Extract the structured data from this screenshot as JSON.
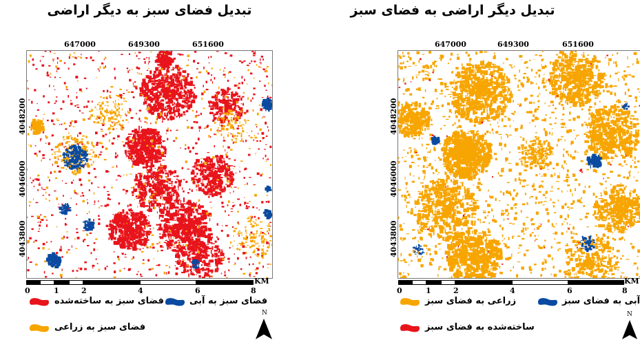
{
  "panels": [
    {
      "id": "left",
      "title": "تبدیل فضای سبز به دیگر اراضی",
      "x_ticks": [
        "647000",
        "649300",
        "651600"
      ],
      "y_ticks": [
        "4048200",
        "4046000",
        "4043800"
      ],
      "scale_labels": [
        "0",
        "1",
        "2",
        "4",
        "6",
        "8"
      ],
      "scale_unit": "KM",
      "north_label": "N",
      "legend": [
        {
          "label": "فضای سبز به ساخته‌شده",
          "color": "#e8141c"
        },
        {
          "label": "فضای سبز به آبی",
          "color": "#0a4aa0"
        },
        {
          "label": "فضای سبز به زراعی",
          "color": "#f7a500"
        }
      ]
    },
    {
      "id": "right",
      "title": "تبدیل دیگر اراضی به فضای سبز",
      "x_ticks": [
        "647000",
        "649300",
        "651600"
      ],
      "y_ticks": [
        "4048200",
        "4046000",
        "4043800"
      ],
      "scale_labels": [
        "0",
        "1",
        "2",
        "4",
        "6",
        "8"
      ],
      "scale_unit": "KM",
      "north_label": "N",
      "legend": [
        {
          "label": "زراعی به فضای سبز",
          "color": "#f7a500"
        },
        {
          "label": "آبی به فضای سبز",
          "color": "#0a4aa0"
        },
        {
          "label": "ساخته‌شده به فضای سبز",
          "color": "#e8141c"
        }
      ]
    }
  ]
}
